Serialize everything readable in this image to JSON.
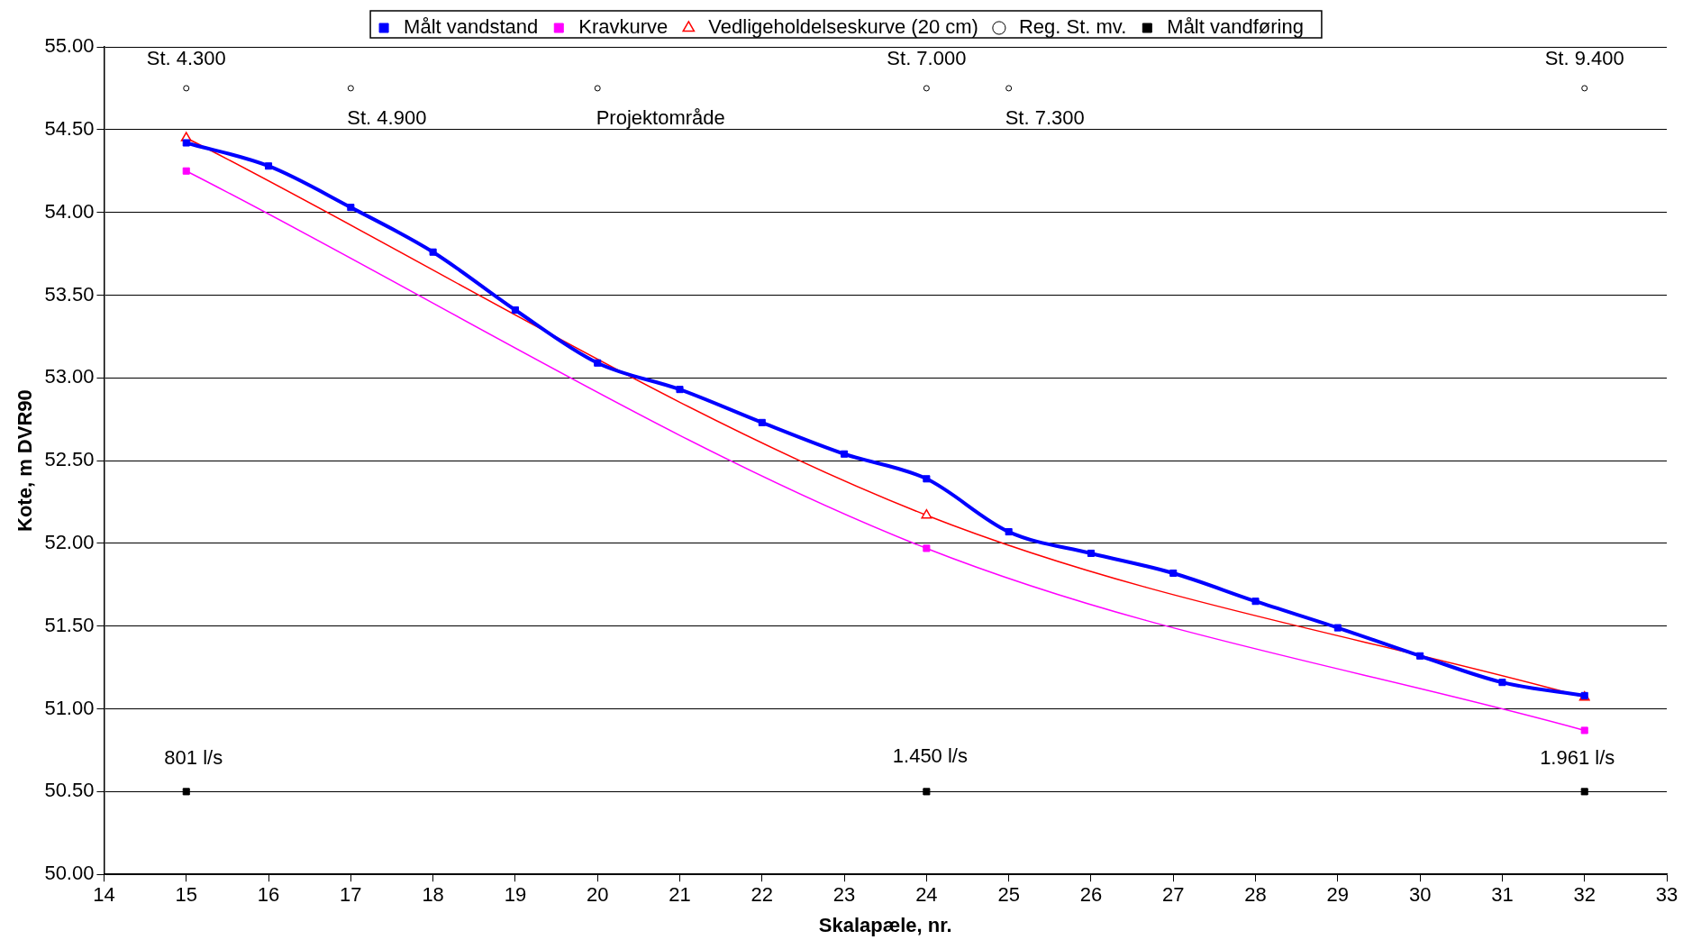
{
  "chart_data": {
    "type": "line",
    "xlabel": "Skalapæle, nr.",
    "ylabel": "Kote, m DVR90",
    "xlim": [
      14,
      33
    ],
    "xticks": [
      14,
      15,
      16,
      17,
      18,
      19,
      20,
      21,
      22,
      23,
      24,
      25,
      26,
      27,
      28,
      29,
      30,
      31,
      32,
      33
    ],
    "ylim": [
      50,
      55
    ],
    "yticks": [
      {
        "value": 50,
        "label": "50.00"
      },
      {
        "value": 50.5,
        "label": "50.50"
      },
      {
        "value": 51,
        "label": "51.00"
      },
      {
        "value": 51.5,
        "label": "51.50"
      },
      {
        "value": 52,
        "label": "52.00"
      },
      {
        "value": 52.5,
        "label": "52.50"
      },
      {
        "value": 53,
        "label": "53.00"
      },
      {
        "value": 53.5,
        "label": "53.50"
      },
      {
        "value": 54,
        "label": "54.00"
      },
      {
        "value": 54.5,
        "label": "54.50"
      },
      {
        "value": 55,
        "label": "55.00"
      }
    ],
    "grid": "y",
    "legend": "top",
    "series": [
      {
        "name": "Målt vandstand",
        "type": "line",
        "color": "#0000ff",
        "marker": "square",
        "x": [
          15,
          16,
          17,
          18,
          19,
          20,
          21,
          22,
          23,
          24,
          25,
          26,
          27,
          28,
          29,
          30,
          31,
          32
        ],
        "values": [
          54.42,
          54.28,
          54.03,
          53.76,
          53.41,
          53.09,
          52.93,
          52.73,
          52.54,
          52.39,
          52.07,
          51.94,
          51.82,
          51.65,
          51.49,
          51.32,
          51.16,
          51.08
        ]
      },
      {
        "name": "Kravkurve",
        "type": "line",
        "color": "#ff00ff",
        "marker": "square",
        "x": [
          15,
          24,
          32
        ],
        "values": [
          54.25,
          51.97,
          50.87
        ]
      },
      {
        "name": "Vedligeholdelseskurve (20 cm)",
        "type": "line",
        "color": "#ff0000",
        "marker": "triangle",
        "x": [
          15,
          24,
          32
        ],
        "values": [
          54.45,
          52.17,
          51.07
        ]
      },
      {
        "name": "Reg. St. mv.",
        "type": "scatter",
        "color": "#000000",
        "marker": "circle",
        "x": [
          15,
          17,
          20,
          24,
          25,
          32
        ],
        "values": [
          54.75,
          54.75,
          54.75,
          54.75,
          54.75,
          54.75
        ]
      },
      {
        "name": "Målt vandføring",
        "type": "scatter",
        "color": "#000000",
        "marker": "square",
        "x": [
          15,
          24,
          32
        ],
        "values": [
          50.5,
          50.5,
          50.5
        ]
      }
    ],
    "annotations": [
      {
        "text": "St. 4.300",
        "x": 15,
        "y": 54.75
      },
      {
        "text": "St. 4.900",
        "x": 17,
        "y": 54.75
      },
      {
        "text": "Projektområde",
        "x": 20,
        "y": 54.75
      },
      {
        "text": "St. 7.000",
        "x": 24,
        "y": 54.75
      },
      {
        "text": "St. 7.300",
        "x": 25,
        "y": 54.75
      },
      {
        "text": "St. 9.400",
        "x": 32,
        "y": 54.75
      },
      {
        "text": "801 l/s",
        "x": 15,
        "y": 50.5
      },
      {
        "text": "1.450 l/s",
        "x": 24,
        "y": 50.5
      },
      {
        "text": "1.961 l/s",
        "x": 32,
        "y": 50.5
      }
    ]
  }
}
